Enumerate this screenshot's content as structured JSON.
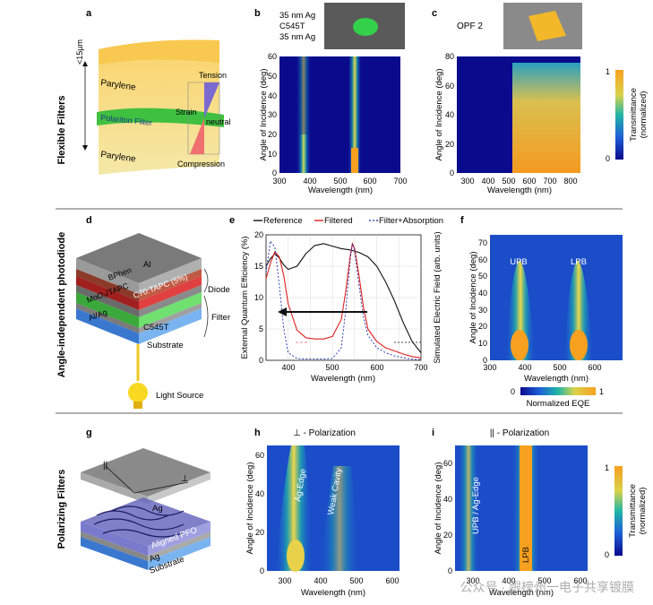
{
  "panels": {
    "a": {
      "letter": "a",
      "row_label": "Flexible Filters",
      "thickness": "<15µm",
      "layer_top": "Parylene",
      "layer_mid": "Polariton Filter",
      "layer_bottom": "Parylene",
      "tension": "Tension",
      "strain": "Strain",
      "neutral": "neutral",
      "compression": "Compression"
    },
    "b": {
      "letter": "b",
      "stack": [
        "35 nm Ag",
        "C545T",
        "35 nm Ag"
      ],
      "ylabel": "Angle of Incidence (deg)",
      "xlabel": "Wavelength (nm)",
      "xticks": [
        "300",
        "400",
        "500",
        "600",
        "700"
      ],
      "yticks": [
        "0",
        "10",
        "20",
        "30",
        "40",
        "50",
        "60"
      ]
    },
    "c": {
      "letter": "c",
      "label": "OPF 2",
      "ylabel": "Angle of Incidence (deg)",
      "xlabel": "Wavelength (nm)",
      "xticks": [
        "300",
        "400",
        "500",
        "600",
        "700",
        "800"
      ],
      "yticks": [
        "0",
        "20",
        "40",
        "60",
        "80"
      ],
      "cbar_title": "Transmittance",
      "cbar_sub": "(normalized)",
      "cbar_max": "1",
      "cbar_min": "0"
    },
    "d": {
      "letter": "d",
      "row_label": "Angle-independent photodiode",
      "layers": [
        "Al",
        "BPhen",
        "C70:TAPC (5%)",
        "MoO₃/TAPC",
        "Al/Ag",
        "C545T",
        "Substrate"
      ],
      "diode": "Diode",
      "filter": "Filter",
      "light": "Light Source"
    },
    "e": {
      "letter": "e",
      "legend": [
        "Reference",
        "Filtered",
        "Filter+Absorption"
      ],
      "ylabel": "External Quantum Efficiency (%)",
      "y2label": "Simulated Electric Field (arb. units)",
      "xlabel": "Wavelength (nm)",
      "xticks": [
        "400",
        "500",
        "600",
        "700"
      ],
      "yticks": [
        "0",
        "5",
        "10",
        "15",
        "20"
      ]
    },
    "f": {
      "letter": "f",
      "ylabel": "Angle of Incidence (deg)",
      "xlabel": "Wavelength (nm)",
      "xticks": [
        "300",
        "400",
        "500",
        "600"
      ],
      "yticks": [
        "0",
        "10",
        "20",
        "30",
        "40",
        "50",
        "60",
        "70"
      ],
      "upb": "UPB",
      "lpb": "LPB",
      "cbar_min": "0",
      "cbar_max": "1",
      "cbar_title": "Normalized EQE"
    },
    "g": {
      "letter": "g",
      "row_label": "Polarizing Filters",
      "par": "||",
      "perp": "⊥",
      "ag_top": "Ag",
      "pfo": "Aligned PFO",
      "ag_bot": "Ag",
      "substrate": "Substrate"
    },
    "h": {
      "letter": "h",
      "title": "⊥ - Polarization",
      "ylabel": "Angle of Incidence (deg)",
      "xlabel": "Wavelength (nm)",
      "xticks": [
        "300",
        "400",
        "500",
        "600"
      ],
      "yticks": [
        "0",
        "20",
        "40",
        "60"
      ],
      "ann1": "Ag-Edge",
      "ann2": "Weak Cavity"
    },
    "i": {
      "letter": "i",
      "title": "|| - Polarization",
      "ylabel": "Angle of Incidence (deg)",
      "xlabel": "Wavelength (nm)",
      "xticks": [
        "300",
        "400",
        "500",
        "600"
      ],
      "yticks": [
        "0",
        "20",
        "40",
        "60"
      ],
      "ann1": "UPB / Ag-Edge",
      "ann2": "LPB",
      "cbar_title": "Transmittance",
      "cbar_sub": "(normalized)",
      "cbar_max": "1",
      "cbar_min": "0"
    }
  },
  "watermark": "公众号 · 跟榜州一电子共享镀膜",
  "chart_data": [
    {
      "type": "line",
      "panel": "e",
      "title": "",
      "xlabel": "Wavelength (nm)",
      "ylabel": "External Quantum Efficiency (%)",
      "xlim": [
        350,
        700
      ],
      "ylim": [
        0,
        20
      ],
      "series": [
        {
          "name": "Reference",
          "color": "#111111",
          "x": [
            350,
            360,
            370,
            380,
            390,
            400,
            420,
            440,
            460,
            480,
            500,
            520,
            540,
            560,
            580,
            600,
            620,
            640,
            660,
            680,
            700
          ],
          "values": [
            15,
            16.2,
            17,
            16.3,
            15.2,
            14.5,
            15,
            17,
            18.3,
            18.6,
            18.2,
            17.8,
            17.6,
            17.2,
            16.5,
            15,
            12.5,
            9.5,
            6,
            3,
            1.2
          ]
        },
        {
          "name": "Filtered",
          "color": "#e02020",
          "x": [
            350,
            360,
            370,
            380,
            390,
            400,
            420,
            440,
            460,
            480,
            500,
            520,
            530,
            540,
            545,
            550,
            560,
            570,
            580,
            600,
            620,
            640,
            660,
            680,
            700
          ],
          "values": [
            13,
            15.5,
            17.3,
            16.5,
            13.5,
            9,
            4.8,
            3.6,
            3.4,
            3.4,
            3.8,
            6.5,
            11,
            16.5,
            18.6,
            17.8,
            13.5,
            8.5,
            5,
            3,
            2,
            1.5,
            1,
            0.6,
            0.4
          ]
        },
        {
          "name": "Filter+Absorption",
          "color": "#1a2aa8",
          "x": [
            350,
            360,
            370,
            380,
            390,
            400,
            420,
            440,
            460,
            480,
            500,
            520,
            530,
            540,
            545,
            550,
            560,
            570,
            580,
            600,
            620,
            640,
            660,
            680,
            700
          ],
          "values": [
            14,
            19,
            18,
            12,
            5,
            1.2,
            0.3,
            0.2,
            0.2,
            0.2,
            0.3,
            2,
            8,
            16,
            18.6,
            17.5,
            12,
            7,
            4,
            2,
            1.2,
            0.7,
            0.4,
            0.2,
            0.1
          ]
        }
      ]
    },
    {
      "type": "heatmap",
      "panel": "b",
      "xlim": [
        300,
        700
      ],
      "ylim": [
        0,
        60
      ],
      "bands": [
        {
          "center": 380
        },
        {
          "center": 545
        }
      ]
    },
    {
      "type": "heatmap",
      "panel": "c",
      "xlim": [
        250,
        850
      ],
      "ylim": [
        0,
        80
      ],
      "edge": 540
    },
    {
      "type": "heatmap",
      "panel": "f",
      "xlim": [
        300,
        680
      ],
      "ylim": [
        0,
        75
      ],
      "bands": [
        {
          "name": "UPB",
          "center": 365
        },
        {
          "name": "LPB",
          "center": 545
        }
      ]
    },
    {
      "type": "heatmap",
      "panel": "h",
      "xlim": [
        250,
        620
      ],
      "ylim": [
        0,
        65
      ],
      "bands": [
        {
          "name": "Ag-Edge",
          "center": 330
        },
        {
          "name": "Weak Cavity",
          "center": 430
        }
      ]
    },
    {
      "type": "heatmap",
      "panel": "i",
      "xlim": [
        250,
        620
      ],
      "ylim": [
        0,
        70
      ],
      "bands": [
        {
          "name": "UPB / Ag-Edge",
          "center": 320
        },
        {
          "name": "LPB",
          "center": 450
        }
      ]
    }
  ]
}
